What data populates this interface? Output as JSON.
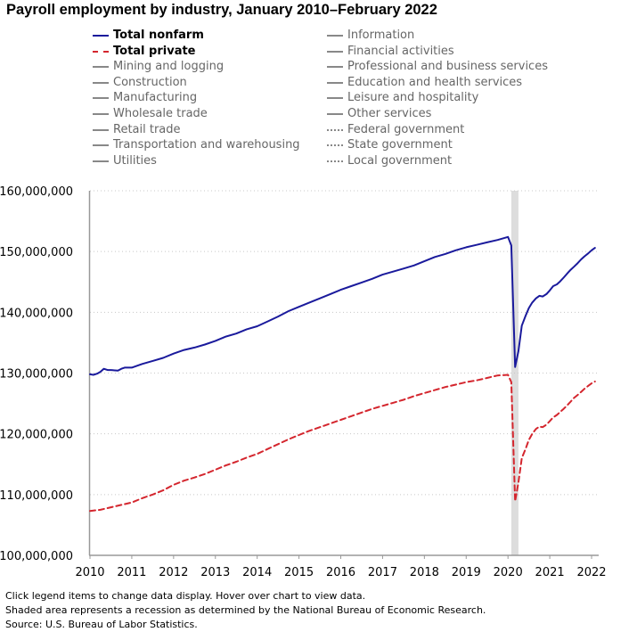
{
  "chart_data": {
    "type": "line",
    "title": "Payroll employment by industry, January 2010–February 2022",
    "xlabel": "",
    "ylabel": "",
    "xlim": [
      2010,
      2022.17
    ],
    "ylim": [
      100000000,
      160000000
    ],
    "y_ticks": [
      "100,000,000",
      "110,000,000",
      "120,000,000",
      "130,000,000",
      "140,000,000",
      "150,000,000",
      "160,000,000"
    ],
    "y_tick_values": [
      100000000,
      110000000,
      120000000,
      130000000,
      140000000,
      150000000,
      160000000
    ],
    "x_ticks": [
      "2010",
      "2011",
      "2012",
      "2013",
      "2014",
      "2015",
      "2016",
      "2017",
      "2018",
      "2019",
      "2020",
      "2021",
      "2022"
    ],
    "x_tick_values": [
      2010,
      2011,
      2012,
      2013,
      2014,
      2015,
      2016,
      2017,
      2018,
      2019,
      2020,
      2021,
      2022
    ],
    "grid": true,
    "recession": {
      "start": 2020.08,
      "end": 2020.25,
      "color": "#dddddd"
    },
    "legend_position": "top",
    "legend": {
      "left": [
        {
          "label": "Total nonfarm",
          "style": "solid",
          "color": "#1a1a9c",
          "active": true
        },
        {
          "label": "Total private",
          "style": "dashed",
          "color": "#d4262e",
          "active": true
        },
        {
          "label": "Mining and logging",
          "style": "solid",
          "color": "#888888",
          "active": false
        },
        {
          "label": "Construction",
          "style": "solid",
          "color": "#888888",
          "active": false
        },
        {
          "label": "Manufacturing",
          "style": "solid",
          "color": "#888888",
          "active": false
        },
        {
          "label": "Wholesale trade",
          "style": "solid",
          "color": "#888888",
          "active": false
        },
        {
          "label": "Retail trade",
          "style": "solid",
          "color": "#888888",
          "active": false
        },
        {
          "label": "Transportation and warehousing",
          "style": "solid",
          "color": "#888888",
          "active": false
        },
        {
          "label": "Utilities",
          "style": "solid",
          "color": "#888888",
          "active": false
        }
      ],
      "right": [
        {
          "label": "Information",
          "style": "solid",
          "color": "#888888",
          "active": false
        },
        {
          "label": "Financial activities",
          "style": "solid",
          "color": "#888888",
          "active": false
        },
        {
          "label": "Professional and business services",
          "style": "solid",
          "color": "#888888",
          "active": false
        },
        {
          "label": "Education and health services",
          "style": "solid",
          "color": "#888888",
          "active": false
        },
        {
          "label": "Leisure and hospitality",
          "style": "solid",
          "color": "#888888",
          "active": false
        },
        {
          "label": "Other services",
          "style": "solid",
          "color": "#888888",
          "active": false
        },
        {
          "label": "Federal government",
          "style": "dotted",
          "color": "#888888",
          "active": false
        },
        {
          "label": "State government",
          "style": "dotted",
          "color": "#888888",
          "active": false
        },
        {
          "label": "Local government",
          "style": "dotted",
          "color": "#888888",
          "active": false
        }
      ]
    },
    "series": [
      {
        "name": "Total nonfarm",
        "style": "solid",
        "color": "#1a1a9c",
        "x": [
          2010,
          2010.08,
          2010.17,
          2010.25,
          2010.33,
          2010.42,
          2010.5,
          2010.67,
          2010.75,
          2010.83,
          2011,
          2011.25,
          2011.5,
          2011.75,
          2012,
          2012.25,
          2012.5,
          2012.75,
          2013,
          2013.25,
          2013.5,
          2013.75,
          2014,
          2014.25,
          2014.5,
          2014.75,
          2015,
          2015.25,
          2015.5,
          2015.75,
          2016,
          2016.25,
          2016.5,
          2016.75,
          2017,
          2017.25,
          2017.5,
          2017.75,
          2018,
          2018.25,
          2018.5,
          2018.75,
          2019,
          2019.25,
          2019.5,
          2019.75,
          2020,
          2020.08,
          2020.17,
          2020.25,
          2020.33,
          2020.42,
          2020.5,
          2020.58,
          2020.67,
          2020.75,
          2020.83,
          2020.92,
          2021,
          2021.08,
          2021.17,
          2021.25,
          2021.33,
          2021.42,
          2021.5,
          2021.58,
          2021.67,
          2021.75,
          2021.83,
          2021.92,
          2022,
          2022.08
        ],
        "values": [
          129800000,
          129700000,
          129900000,
          130200000,
          130700000,
          130500000,
          130500000,
          130400000,
          130700000,
          130900000,
          130900000,
          131500000,
          132000000,
          132500000,
          133200000,
          133800000,
          134200000,
          134700000,
          135300000,
          136000000,
          136500000,
          137200000,
          137700000,
          138500000,
          139300000,
          140200000,
          140900000,
          141600000,
          142300000,
          143000000,
          143700000,
          144300000,
          144900000,
          145500000,
          146200000,
          146700000,
          147200000,
          147700000,
          148400000,
          149100000,
          149600000,
          150200000,
          150700000,
          151100000,
          151500000,
          151900000,
          152400000,
          151000000,
          131000000,
          133600000,
          137800000,
          139400000,
          140700000,
          141600000,
          142300000,
          142700000,
          142600000,
          143000000,
          143600000,
          144300000,
          144600000,
          145100000,
          145700000,
          146400000,
          147000000,
          147500000,
          148100000,
          148700000,
          149200000,
          149700000,
          150200000,
          150600000
        ]
      },
      {
        "name": "Total private",
        "style": "dashed",
        "color": "#d4262e",
        "x": [
          2010,
          2010.25,
          2010.5,
          2010.75,
          2011,
          2011.25,
          2011.5,
          2011.75,
          2012,
          2012.25,
          2012.5,
          2012.75,
          2013,
          2013.25,
          2013.5,
          2013.75,
          2014,
          2014.25,
          2014.5,
          2014.75,
          2015,
          2015.25,
          2015.5,
          2015.75,
          2016,
          2016.25,
          2016.5,
          2016.75,
          2017,
          2017.25,
          2017.5,
          2017.75,
          2018,
          2018.25,
          2018.5,
          2018.75,
          2019,
          2019.25,
          2019.5,
          2019.75,
          2020,
          2020.08,
          2020.17,
          2020.25,
          2020.33,
          2020.42,
          2020.5,
          2020.58,
          2020.67,
          2020.75,
          2020.83,
          2020.92,
          2021,
          2021.08,
          2021.17,
          2021.25,
          2021.33,
          2021.42,
          2021.5,
          2021.58,
          2021.67,
          2021.75,
          2021.83,
          2021.92,
          2022,
          2022.08
        ],
        "values": [
          107300000,
          107500000,
          107900000,
          108300000,
          108700000,
          109400000,
          110000000,
          110700000,
          111600000,
          112300000,
          112800000,
          113400000,
          114100000,
          114800000,
          115400000,
          116100000,
          116700000,
          117500000,
          118300000,
          119100000,
          119800000,
          120500000,
          121100000,
          121700000,
          122300000,
          122900000,
          123500000,
          124100000,
          124600000,
          125100000,
          125600000,
          126200000,
          126700000,
          127200000,
          127700000,
          128100000,
          128500000,
          128800000,
          129200000,
          129600000,
          129700000,
          128500000,
          108900000,
          112000000,
          116000000,
          117500000,
          119000000,
          120000000,
          120800000,
          121200000,
          121100000,
          121500000,
          122100000,
          122700000,
          123100000,
          123600000,
          124100000,
          124700000,
          125300000,
          125900000,
          126400000,
          126900000,
          127400000,
          127900000,
          128300000,
          128600000
        ]
      }
    ],
    "notes": [
      "Click legend items to change data display. Hover over chart to view data.",
      "Shaded area represents a recession as determined by the National Bureau of Economic Research.",
      "Source: U.S. Bureau of Labor Statistics."
    ]
  }
}
